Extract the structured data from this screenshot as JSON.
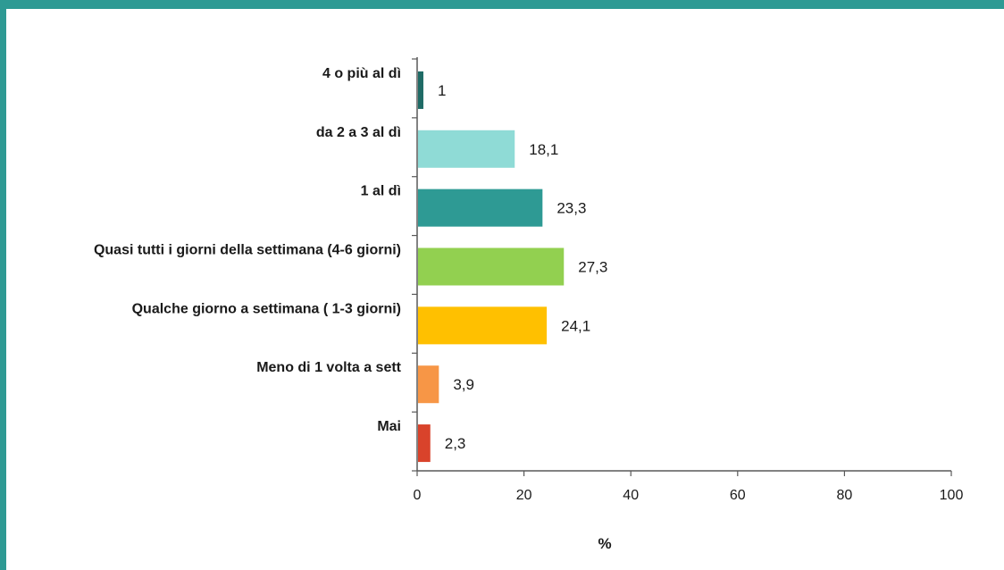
{
  "chart_data": {
    "type": "bar",
    "orientation": "horizontal",
    "categories": [
      "4 o più al dì",
      "da 2 a 3 al dì",
      "1 al dì",
      "Quasi tutti i giorni della settimana (4-6 giorni)",
      "Qualche giorno a settimana ( 1-3 giorni)",
      "Meno di 1 volta a sett",
      "Mai"
    ],
    "values": [
      1,
      18.1,
      23.3,
      27.3,
      24.1,
      3.9,
      2.3
    ],
    "value_labels": [
      "1",
      "18,1",
      "23,3",
      "27,3",
      "24,1",
      "3,9",
      "2,3"
    ],
    "colors": [
      "#1F6B66",
      "#8FDBD6",
      "#2E9A94",
      "#92D050",
      "#FFC000",
      "#F79646",
      "#D9432B"
    ],
    "xlabel": "%",
    "xlim": [
      0,
      100
    ],
    "xticks": [
      0,
      20,
      40,
      60,
      80,
      100
    ],
    "xtick_labels": [
      "0",
      "20",
      "40",
      "60",
      "80",
      "100"
    ],
    "grid": false,
    "legend": "none"
  },
  "theme": {
    "frame_color": "#2E9A94"
  }
}
